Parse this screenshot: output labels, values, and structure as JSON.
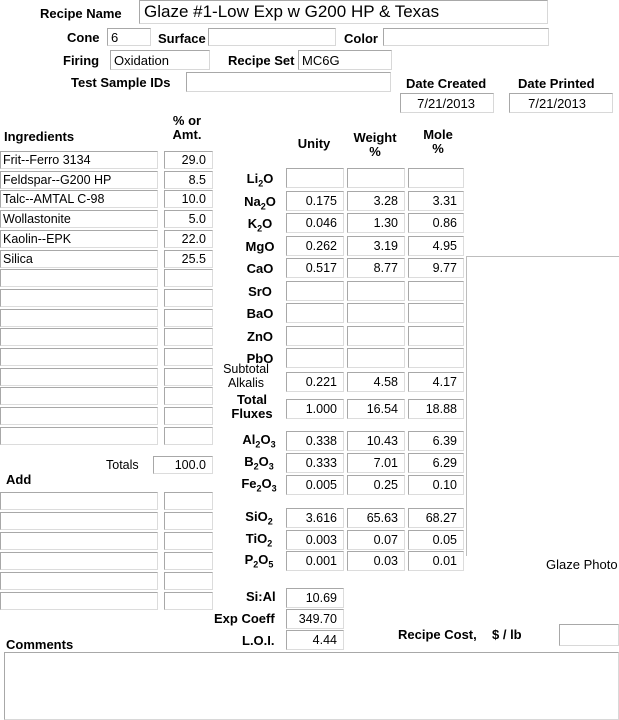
{
  "header": {
    "recipe_name_label": "Recipe Name",
    "recipe_name": "Glaze #1-Low Exp w G200 HP & Texas",
    "cone_label": "Cone",
    "cone": "6",
    "surface_label": "Surface",
    "surface": "",
    "color_label": "Color",
    "color": "",
    "firing_label": "Firing",
    "firing": "Oxidation",
    "recipe_set_label": "Recipe Set",
    "recipe_set": "MC6G",
    "test_ids_label": "Test Sample IDs",
    "test_ids": "",
    "date_created_label": "Date Created",
    "date_created": "7/21/2013",
    "date_printed_label": "Date Printed",
    "date_printed": "7/21/2013"
  },
  "ingredients": {
    "header": "Ingredients",
    "amt_header_1": "% or",
    "amt_header_2": "Amt.",
    "rows": [
      {
        "name": "Frit--Ferro 3134",
        "amt": "29.0"
      },
      {
        "name": "Feldspar--G200 HP",
        "amt": "8.5"
      },
      {
        "name": "Talc--AMTAL C-98",
        "amt": "10.0"
      },
      {
        "name": "Wollastonite",
        "amt": "5.0"
      },
      {
        "name": "Kaolin--EPK",
        "amt": "22.0"
      },
      {
        "name": "Silica",
        "amt": "25.5"
      },
      {
        "name": "",
        "amt": ""
      },
      {
        "name": "",
        "amt": ""
      },
      {
        "name": "",
        "amt": ""
      },
      {
        "name": "",
        "amt": ""
      },
      {
        "name": "",
        "amt": ""
      },
      {
        "name": "",
        "amt": ""
      },
      {
        "name": "",
        "amt": ""
      },
      {
        "name": "",
        "amt": ""
      },
      {
        "name": "",
        "amt": ""
      }
    ],
    "totals_label": "Totals",
    "totals": "100.0",
    "add_label": "Add",
    "add_rows": [
      {
        "name": "",
        "amt": ""
      },
      {
        "name": "",
        "amt": ""
      },
      {
        "name": "",
        "amt": ""
      },
      {
        "name": "",
        "amt": ""
      },
      {
        "name": "",
        "amt": ""
      },
      {
        "name": "",
        "amt": ""
      }
    ]
  },
  "analysis": {
    "unity_header": "Unity",
    "weight_header_1": "Weight",
    "weight_header_2": "%",
    "mole_header_1": "Mole",
    "mole_header_2": "%",
    "rows": [
      {
        "ox": "Li",
        "sub": "2",
        "tail": "O",
        "unity": "",
        "weight": "",
        "mole": ""
      },
      {
        "ox": "Na",
        "sub": "2",
        "tail": "O",
        "unity": "0.175",
        "weight": "3.28",
        "mole": "3.31"
      },
      {
        "ox": "K",
        "sub": "2",
        "tail": "O",
        "unity": "0.046",
        "weight": "1.30",
        "mole": "0.86"
      },
      {
        "ox": "MgO",
        "sub": "",
        "tail": "",
        "unity": "0.262",
        "weight": "3.19",
        "mole": "4.95"
      },
      {
        "ox": "CaO",
        "sub": "",
        "tail": "",
        "unity": "0.517",
        "weight": "8.77",
        "mole": "9.77"
      },
      {
        "ox": "SrO",
        "sub": "",
        "tail": "",
        "unity": "",
        "weight": "",
        "mole": ""
      },
      {
        "ox": "BaO",
        "sub": "",
        "tail": "",
        "unity": "",
        "weight": "",
        "mole": ""
      },
      {
        "ox": "ZnO",
        "sub": "",
        "tail": "",
        "unity": "",
        "weight": "",
        "mole": ""
      },
      {
        "ox": "PbO",
        "sub": "",
        "tail": "",
        "unity": "",
        "weight": "",
        "mole": ""
      }
    ],
    "subtotal_label_1": "Subtotal",
    "subtotal_label_2": "Alkalis",
    "subtotal": {
      "unity": "0.221",
      "weight": "4.58",
      "mole": "4.17"
    },
    "total_label_1": "Total",
    "total_label_2": "Fluxes",
    "total": {
      "unity": "1.000",
      "weight": "16.54",
      "mole": "18.88"
    },
    "rows2": [
      {
        "ox": "Al",
        "sub": "2",
        "tail": "O",
        "sub2": "3",
        "unity": "0.338",
        "weight": "10.43",
        "mole": "6.39"
      },
      {
        "ox": "B",
        "sub": "2",
        "tail": "O",
        "sub2": "3",
        "unity": "0.333",
        "weight": "7.01",
        "mole": "6.29"
      },
      {
        "ox": "Fe",
        "sub": "2",
        "tail": "O",
        "sub2": "3",
        "unity": "0.005",
        "weight": "0.25",
        "mole": "0.10"
      },
      {
        "ox": "SiO",
        "sub": "",
        "tail": "",
        "sub2": "2",
        "unity": "3.616",
        "weight": "65.63",
        "mole": "68.27"
      },
      {
        "ox": "TiO",
        "sub": "",
        "tail": "",
        "sub2": "2",
        "unity": "0.003",
        "weight": "0.07",
        "mole": "0.05"
      },
      {
        "ox": "P",
        "sub": "2",
        "tail": "O",
        "sub2": "5",
        "unity": "0.001",
        "weight": "0.03",
        "mole": "0.01"
      }
    ],
    "si_al_label": "Si:Al",
    "si_al": "10.69",
    "exp_coeff_label": "Exp Coeff",
    "exp_coeff": "349.70",
    "loi_label": "L.O.I.",
    "loi": "4.44"
  },
  "glaze_photo_label": "Glaze Photo",
  "recipe_cost_label": "Recipe Cost,",
  "recipe_cost_unit": "$ / lb",
  "recipe_cost": "",
  "comments_label": "Comments",
  "comments": ""
}
